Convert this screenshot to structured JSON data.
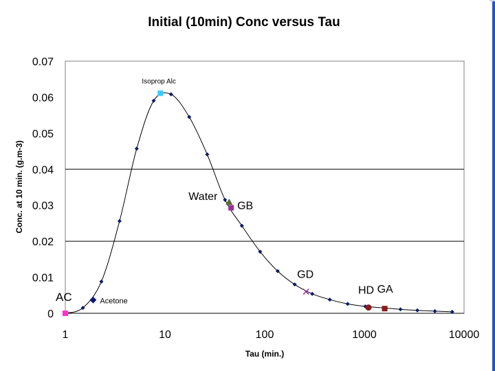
{
  "chart_data": {
    "type": "line",
    "title": "Initial (10min) Conc versus Tau",
    "xlabel": "Tau (min.)",
    "ylabel": "Conc. at 10 min. (g.m-3)",
    "x_scale": "log",
    "xlim": [
      1,
      10000
    ],
    "ylim": [
      0,
      0.07
    ],
    "x_tick_labels": [
      "1",
      "10",
      "100",
      "1000",
      "10000"
    ],
    "y_tick_labels": [
      "0",
      "0.01",
      "0.02",
      "0.03",
      "0.04",
      "0.05",
      "0.06",
      "0.07"
    ],
    "grid": "horizontal lines at 0.02 and 0.04",
    "series": [
      {
        "color": "#0b1a6b",
        "marker": "small-diamond",
        "x": [
          1.5,
          2.3,
          3.5,
          5.2,
          7.7,
          11.5,
          17.5,
          26.5,
          40,
          59,
          90,
          135,
          200,
          300,
          450,
          680,
          1020,
          1550,
          2300,
          3400,
          5100,
          7600
        ],
        "y": [
          0.0015,
          0.0088,
          0.0256,
          0.0457,
          0.059,
          0.0608,
          0.0545,
          0.0441,
          0.0315,
          0.0243,
          0.0171,
          0.0117,
          0.008,
          0.0054,
          0.0038,
          0.0026,
          0.0019,
          0.0015,
          0.0011,
          0.0008,
          0.0006,
          0.0004
        ]
      }
    ],
    "labeled_points": [
      {
        "label": "AC",
        "x": 1.0,
        "y": 0.0,
        "color": "#ff33cc",
        "marker": "square"
      },
      {
        "label": "Acetone",
        "x": 1.9,
        "y": 0.0037,
        "color": "#0b1a6b",
        "marker": "diamond"
      },
      {
        "label": "Isoprop Alc",
        "x": 9.0,
        "y": 0.0611,
        "color": "#33ccff",
        "marker": "square"
      },
      {
        "label": "Water",
        "x": 44,
        "y": 0.0309,
        "color": "#556b2f",
        "marker": "triangle"
      },
      {
        "label": "GB",
        "x": 46,
        "y": 0.0293,
        "color": "#993399",
        "marker": "square"
      },
      {
        "label": "GD",
        "x": 260,
        "y": 0.006,
        "color": "#993399",
        "marker": "x"
      },
      {
        "label": "HD",
        "x": 1100,
        "y": 0.0016,
        "color": "#8b1a1a",
        "marker": "circle"
      },
      {
        "label": "GA",
        "x": 1600,
        "y": 0.0013,
        "color": "#8b1a1a",
        "marker": "square"
      }
    ]
  }
}
